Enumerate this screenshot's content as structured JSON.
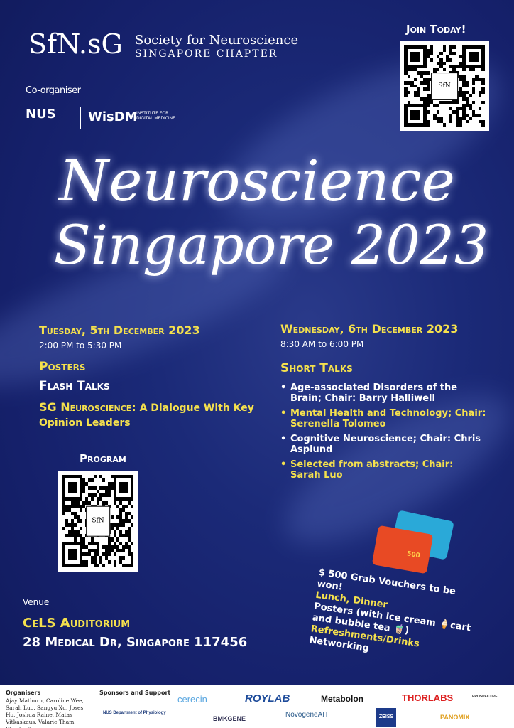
{
  "header": {
    "logo_mark": "SfN.sG",
    "org_line1": "Society for Neuroscience",
    "org_line2": "SINGAPORE CHAPTER",
    "coorganiser_label": "Co-organiser",
    "coorg_logos": [
      "NUS",
      "WisDM"
    ],
    "coorg_sub": "INSTITUTE FOR DIGITAL MEDICINE"
  },
  "join": {
    "label": "Join Today!"
  },
  "title": {
    "line1": "Neuroscience",
    "line2": "Singapore 2023"
  },
  "day1": {
    "heading": "Tuesday, 5th December 2023",
    "time": "2:00 PM to 5:30 PM",
    "items": [
      "Posters",
      "Flash Talks"
    ],
    "dialogue_title": "SG Neuroscience:",
    "dialogue_rest": "A Dialogue With Key Opinion Leaders"
  },
  "day2": {
    "heading": "Wednesday, 6th December 2023",
    "time": "8:30 AM to 6:00 PM",
    "section": "Short Talks",
    "talks": [
      "Age-associated Disorders of the Brain; Chair: Barry Halliwell",
      "Mental Health and Technology; Chair: Serenella Tolomeo",
      "Cognitive Neuroscience; Chair: Chris Asplund",
      "Selected from abstracts; Chair: Sarah Luo"
    ]
  },
  "program": {
    "label": "Program"
  },
  "venue": {
    "label": "Venue",
    "name": "CeLS Auditorium",
    "address": "28 Medical Dr, Singapore 117456"
  },
  "perks": {
    "voucher": "$ 500 Grab Vouchers to be won!",
    "lunch": "Lunch, Dinner",
    "posters": "Posters (with ice cream 🍦cart and bubble tea 🧋)",
    "refreshments": "Refreshments/Drinks",
    "networking": "Networking",
    "card_text": "500"
  },
  "footer": {
    "organisers_label": "Organisers",
    "organisers": "Ajay Mathuru, Caroline Wee, Sarah Luo, Sangyu Xu, Joses Ho, Joshua Raine, Matas Vitkaskaus, Valarie Tham, Phoebe Koh",
    "sponsors_label": "Sponsors and Support",
    "sponsors": [
      "cerecin",
      "ROYLAB",
      "Metabolon",
      "THORLABS",
      "PROSPECTIVE",
      "NUS Department of Physiology",
      "BMKGENE",
      "NovogeneAIT",
      "ZEISS",
      "PANOMIX"
    ]
  },
  "colors": {
    "background": "#17236a",
    "accent": "#f4e04d"
  }
}
